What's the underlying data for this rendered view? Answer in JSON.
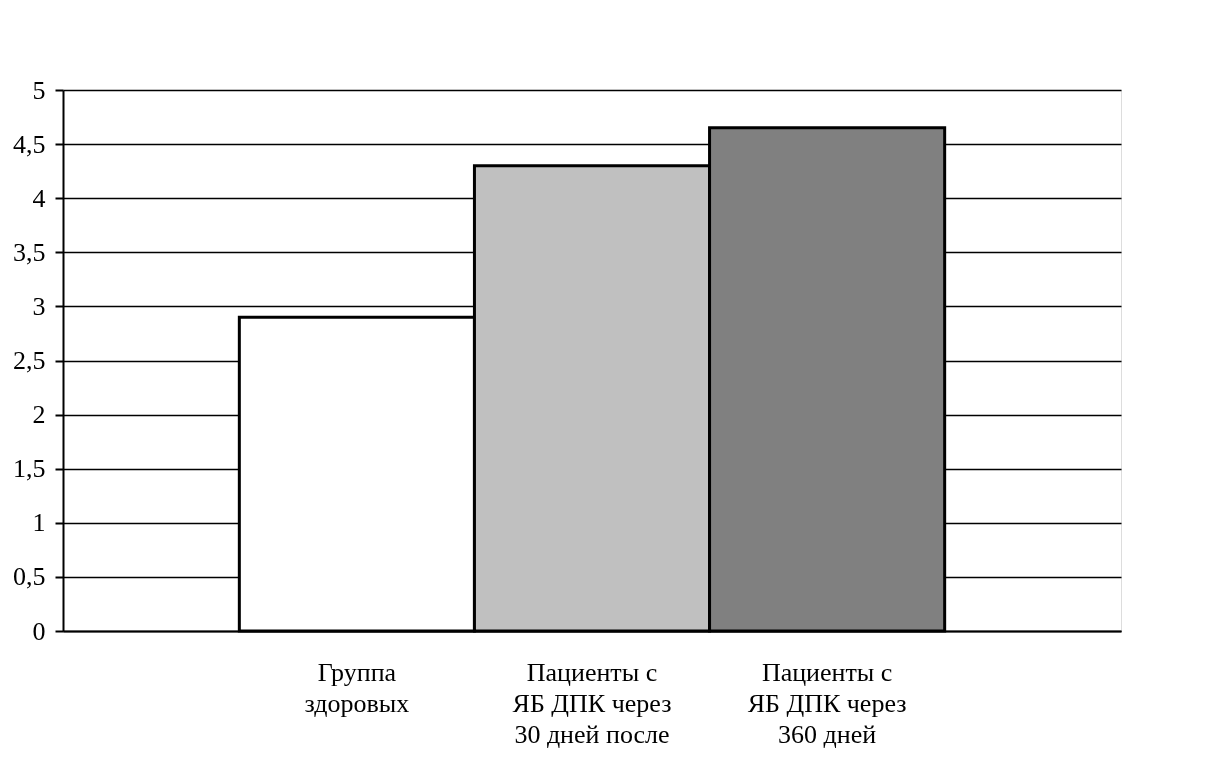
{
  "chart_data": {
    "type": "bar",
    "categories": [
      "Группа здоровых",
      "Пациенты с ЯБ ДПК через 30 дней после",
      "Пациенты с ЯБ ДПК через 360 дней"
    ],
    "values": [
      2.9,
      4.3,
      4.65
    ],
    "colors": [
      "#ffffff",
      "#c0c0c0",
      "#808080"
    ],
    "ylim": [
      0,
      5
    ],
    "yticks": [
      0,
      {
        "value": 0.5,
        "label": "0,5"
      },
      1,
      {
        "value": 1.5,
        "label": "1,5"
      },
      2,
      {
        "value": 2.5,
        "label": "2,5"
      },
      3,
      {
        "value": 3.5,
        "label": "3,5"
      },
      4,
      {
        "value": 4.5,
        "label": "4,5"
      },
      5
    ],
    "grid": "y"
  }
}
